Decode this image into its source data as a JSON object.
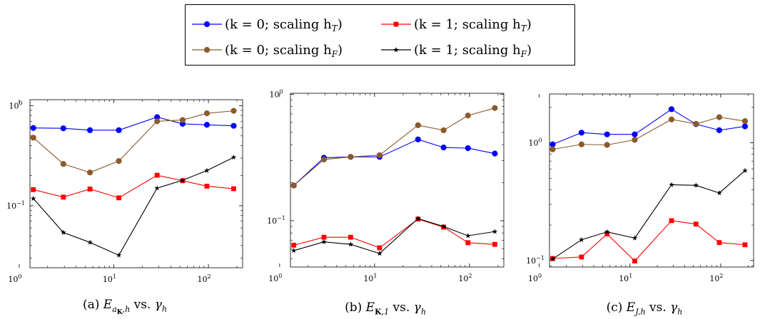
{
  "legend": {
    "entries": [
      {
        "label": "(k = 0; scaling h",
        "sub": "T",
        "close": ")",
        "color": "#0000ff",
        "marker": "circle"
      },
      {
        "label": "(k = 1; scaling h",
        "sub": "T",
        "close": ")",
        "color": "#ff0000",
        "marker": "square"
      },
      {
        "label": "(k = 0; scaling h",
        "sub": "F",
        "close": ")",
        "color": "#8b5a2b",
        "marker": "circle"
      },
      {
        "label": "(k = 1; scaling h",
        "sub": "F",
        "close": ")",
        "color": "#000000",
        "marker": "star"
      }
    ]
  },
  "captions": {
    "a": {
      "prefix": "(a) ",
      "symbol": "E",
      "sub": "a_K,h",
      "vs": " vs. ",
      "gamma": "γ",
      "gsub": "h"
    },
    "b": {
      "prefix": "(b) ",
      "symbol": "E",
      "sub": "K,1",
      "vs": " vs. ",
      "gamma": "γ",
      "gsub": "h"
    },
    "c": {
      "prefix": "(c) ",
      "symbol": "E",
      "sub": "J,h",
      "vs": " vs. ",
      "gamma": "γ",
      "gsub": "h"
    }
  },
  "chart_data": [
    {
      "type": "line",
      "xscale": "log",
      "yscale": "log",
      "xlim": [
        1.3,
        230
      ],
      "ylim": [
        0.024,
        1.15
      ],
      "xticks": [
        {
          "v": 1,
          "base": "10",
          "exp": "0"
        },
        {
          "v": 10,
          "base": "10",
          "exp": "1"
        },
        {
          "v": 100,
          "base": "10",
          "exp": "2"
        }
      ],
      "yticks": [
        {
          "v": 0.1,
          "base": "10",
          "exp": "−1"
        },
        {
          "v": 1,
          "base": "10",
          "exp": "0"
        }
      ],
      "x": [
        1.41,
        2.93,
        5.6,
        11.3,
        28.7,
        53.4,
        96.4,
        185
      ],
      "series": [
        {
          "name": "(k = 0; scaling h_T)",
          "color": "#0000ff",
          "marker": "circle",
          "values": [
            0.6,
            0.595,
            0.57,
            0.57,
            0.77,
            0.66,
            0.645,
            0.63
          ]
        },
        {
          "name": "(k = 1; scaling h_T)",
          "color": "#ff0000",
          "marker": "square",
          "values": [
            0.145,
            0.122,
            0.147,
            0.12,
            0.202,
            0.178,
            0.157,
            0.148
          ]
        },
        {
          "name": "(k = 0; scaling h_F)",
          "color": "#8b5a2b",
          "marker": "circle",
          "values": [
            0.48,
            0.262,
            0.215,
            0.28,
            0.7,
            0.72,
            0.84,
            0.89
          ]
        },
        {
          "name": "(k = 1; scaling h_F)",
          "color": "#000000",
          "marker": "star",
          "values": [
            0.118,
            0.054,
            0.043,
            0.032,
            0.15,
            0.18,
            0.225,
            0.305
          ]
        }
      ]
    },
    {
      "type": "line",
      "xscale": "log",
      "yscale": "log",
      "xlim": [
        1.3,
        230
      ],
      "ylim": [
        0.043,
        1.02
      ],
      "xticks": [
        {
          "v": 1,
          "base": "10",
          "exp": "0"
        },
        {
          "v": 10,
          "base": "10",
          "exp": "1"
        },
        {
          "v": 100,
          "base": "10",
          "exp": "2"
        }
      ],
      "yticks": [
        {
          "v": 0.1,
          "base": "10",
          "exp": "−1"
        },
        {
          "v": 1,
          "base": "10",
          "exp": "0"
        }
      ],
      "x": [
        1.41,
        2.93,
        5.6,
        11.3,
        28.7,
        53.4,
        96.4,
        185
      ],
      "series": [
        {
          "name": "(k = 0; scaling h_T)",
          "color": "#0000ff",
          "marker": "circle",
          "values": [
            0.19,
            0.315,
            0.32,
            0.32,
            0.44,
            0.38,
            0.375,
            0.34
          ]
        },
        {
          "name": "(k = 1; scaling h_T)",
          "color": "#ff0000",
          "marker": "square",
          "values": [
            0.064,
            0.074,
            0.074,
            0.061,
            0.103,
            0.089,
            0.067,
            0.065
          ]
        },
        {
          "name": "(k = 0; scaling h_F)",
          "color": "#8b5a2b",
          "marker": "circle",
          "values": [
            0.19,
            0.305,
            0.32,
            0.33,
            0.57,
            0.52,
            0.68,
            0.78
          ]
        },
        {
          "name": "(k = 1; scaling h_F)",
          "color": "#000000",
          "marker": "star",
          "values": [
            0.058,
            0.068,
            0.065,
            0.055,
            0.104,
            0.09,
            0.076,
            0.082
          ]
        }
      ]
    },
    {
      "type": "line",
      "xscale": "log",
      "yscale": "log",
      "xlim": [
        1.3,
        230
      ],
      "ylim": [
        0.088,
        2.6
      ],
      "xticks": [
        {
          "v": 1,
          "base": "10",
          "exp": "0"
        },
        {
          "v": 10,
          "base": "10",
          "exp": "1"
        },
        {
          "v": 100,
          "base": "10",
          "exp": "2"
        }
      ],
      "yticks": [
        {
          "v": 0.1,
          "base": "10",
          "exp": "−1"
        },
        {
          "v": 1,
          "base": "10",
          "exp": "0"
        }
      ],
      "x": [
        1.41,
        2.93,
        5.6,
        11.3,
        28.7,
        53.4,
        96.4,
        185
      ],
      "series": [
        {
          "name": "(k = 0; scaling h_T)",
          "color": "#0000ff",
          "marker": "circle",
          "values": [
            0.97,
            1.22,
            1.18,
            1.18,
            1.93,
            1.44,
            1.28,
            1.38
          ]
        },
        {
          "name": "(k = 1; scaling h_T)",
          "color": "#ff0000",
          "marker": "square",
          "values": [
            0.104,
            0.107,
            0.168,
            0.099,
            0.218,
            0.204,
            0.142,
            0.136
          ]
        },
        {
          "name": "(k = 0; scaling h_F)",
          "color": "#8b5a2b",
          "marker": "circle",
          "values": [
            0.88,
            0.97,
            0.96,
            1.06,
            1.58,
            1.45,
            1.65,
            1.53
          ]
        },
        {
          "name": "(k = 1; scaling h_F)",
          "color": "#000000",
          "marker": "star",
          "values": [
            0.103,
            0.15,
            0.175,
            0.155,
            0.44,
            0.435,
            0.375,
            0.58
          ]
        }
      ]
    }
  ]
}
